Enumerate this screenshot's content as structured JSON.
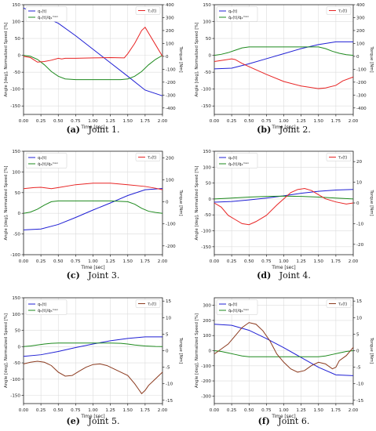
{
  "labels": {
    "xlabel": "Time [sec]",
    "ylabel_left": "Angle [deg], Normalized Speed [%]",
    "ylabel_right": "Torque [Nm]"
  },
  "colors": {
    "position": "#1f1fd4",
    "speed": "#1e8a1e",
    "torque_red": "#e82424",
    "torque_brown": "#8b3a1e"
  },
  "chart_data": [
    {
      "type": "line",
      "caption_tag": "(a)",
      "caption_text": "Joint 1.",
      "legend_left": [
        "q₁(t)",
        "q̇₁(t)/q̇₁ᵐᵃˣ"
      ],
      "legend_right": "τ₁(t)",
      "xlim": [
        0,
        2
      ],
      "xticks": [
        0,
        0.25,
        0.5,
        0.75,
        1.0,
        1.25,
        1.5,
        1.75,
        2.0
      ],
      "ylim_left": [
        -175,
        150
      ],
      "yticks_left": [
        -150,
        -100,
        -50,
        0,
        50,
        100,
        150
      ],
      "ylim_right": [
        -450,
        400
      ],
      "yticks_right": [
        -400,
        -300,
        -200,
        -100,
        0,
        100,
        200,
        300,
        400
      ],
      "torque_color": "#e82424",
      "position": [
        [
          0,
          140
        ],
        [
          0.25,
          118
        ],
        [
          0.5,
          95
        ],
        [
          0.75,
          58
        ],
        [
          1.0,
          18
        ],
        [
          1.25,
          -22
        ],
        [
          1.5,
          -62
        ],
        [
          1.75,
          -103
        ],
        [
          2.0,
          -120
        ]
      ],
      "speed": [
        [
          0,
          0
        ],
        [
          0.1,
          -3
        ],
        [
          0.2,
          -12
        ],
        [
          0.3,
          -28
        ],
        [
          0.4,
          -48
        ],
        [
          0.5,
          -62
        ],
        [
          0.6,
          -70
        ],
        [
          0.75,
          -72
        ],
        [
          1.0,
          -72
        ],
        [
          1.25,
          -72
        ],
        [
          1.4,
          -72
        ],
        [
          1.5,
          -70
        ],
        [
          1.6,
          -62
        ],
        [
          1.7,
          -48
        ],
        [
          1.8,
          -28
        ],
        [
          1.9,
          -12
        ],
        [
          2.0,
          0
        ]
      ],
      "torque": [
        [
          0,
          0
        ],
        [
          0.1,
          -10
        ],
        [
          0.2,
          -45
        ],
        [
          0.3,
          -40
        ],
        [
          0.4,
          -30
        ],
        [
          0.5,
          -15
        ],
        [
          0.55,
          -20
        ],
        [
          0.6,
          -15
        ],
        [
          0.75,
          -15
        ],
        [
          1.0,
          -12
        ],
        [
          1.25,
          -10
        ],
        [
          1.45,
          -12
        ],
        [
          1.5,
          20
        ],
        [
          1.6,
          100
        ],
        [
          1.7,
          200
        ],
        [
          1.75,
          225
        ],
        [
          1.8,
          180
        ],
        [
          1.9,
          90
        ],
        [
          2.0,
          0
        ]
      ]
    },
    {
      "type": "line",
      "caption_tag": "(b)",
      "caption_text": "Joint 2.",
      "legend_left": [
        "q₂(t)",
        "q̇₂(t)/q̇₂ᵐᵃˣ"
      ],
      "legend_right": "τ₂(t)",
      "xlim": [
        0,
        2
      ],
      "xticks": [
        0,
        0.25,
        0.5,
        0.75,
        1.0,
        1.25,
        1.5,
        1.75,
        2.0
      ],
      "ylim_left": [
        -175,
        150
      ],
      "yticks_left": [
        -150,
        -100,
        -50,
        0,
        50,
        100,
        150
      ],
      "ylim_right": [
        -450,
        400
      ],
      "yticks_right": [
        -400,
        -300,
        -200,
        -100,
        0,
        100,
        200,
        300,
        400
      ],
      "torque_color": "#e82424",
      "position": [
        [
          0,
          -40
        ],
        [
          0.25,
          -38
        ],
        [
          0.5,
          -25
        ],
        [
          0.75,
          -10
        ],
        [
          1.0,
          5
        ],
        [
          1.25,
          20
        ],
        [
          1.5,
          32
        ],
        [
          1.75,
          40
        ],
        [
          2.0,
          40
        ]
      ],
      "speed": [
        [
          0,
          0
        ],
        [
          0.1,
          3
        ],
        [
          0.2,
          8
        ],
        [
          0.3,
          15
        ],
        [
          0.4,
          22
        ],
        [
          0.5,
          25
        ],
        [
          0.75,
          25
        ],
        [
          1.0,
          25
        ],
        [
          1.25,
          25
        ],
        [
          1.5,
          25
        ],
        [
          1.6,
          20
        ],
        [
          1.7,
          12
        ],
        [
          1.8,
          6
        ],
        [
          1.9,
          2
        ],
        [
          2.0,
          0
        ]
      ],
      "torque": [
        [
          0,
          -40
        ],
        [
          0.15,
          -28
        ],
        [
          0.25,
          -20
        ],
        [
          0.3,
          -25
        ],
        [
          0.4,
          -55
        ],
        [
          0.5,
          -80
        ],
        [
          0.75,
          -140
        ],
        [
          1.0,
          -195
        ],
        [
          1.25,
          -230
        ],
        [
          1.5,
          -250
        ],
        [
          1.6,
          -245
        ],
        [
          1.75,
          -225
        ],
        [
          1.85,
          -190
        ],
        [
          2.0,
          -160
        ]
      ]
    },
    {
      "type": "line",
      "caption_tag": "(c)",
      "caption_text": "Joint 3.",
      "legend_left": [
        "q₃(t)",
        "q̇₃(t)/q̇₃ᵐᵃˣ"
      ],
      "legend_right": "τ₃(t)",
      "xlim": [
        0,
        2
      ],
      "xticks": [
        0,
        0.25,
        0.5,
        0.75,
        1.0,
        1.25,
        1.5,
        1.75,
        2.0
      ],
      "ylim_left": [
        -100,
        150
      ],
      "yticks_left": [
        -100,
        -50,
        0,
        50,
        100,
        150
      ],
      "ylim_right": [
        -240,
        230
      ],
      "yticks_right": [
        -200,
        -100,
        0,
        100,
        200
      ],
      "torque_color": "#e82424",
      "position": [
        [
          0,
          -40
        ],
        [
          0.25,
          -38
        ],
        [
          0.5,
          -27
        ],
        [
          0.75,
          -10
        ],
        [
          1.0,
          8
        ],
        [
          1.25,
          25
        ],
        [
          1.5,
          43
        ],
        [
          1.75,
          57
        ],
        [
          2.0,
          60
        ]
      ],
      "speed": [
        [
          0,
          0
        ],
        [
          0.1,
          3
        ],
        [
          0.2,
          10
        ],
        [
          0.3,
          20
        ],
        [
          0.4,
          28
        ],
        [
          0.5,
          30
        ],
        [
          0.75,
          30
        ],
        [
          1.0,
          30
        ],
        [
          1.25,
          30
        ],
        [
          1.5,
          28
        ],
        [
          1.6,
          22
        ],
        [
          1.7,
          12
        ],
        [
          1.8,
          5
        ],
        [
          1.9,
          2
        ],
        [
          2.0,
          0
        ]
      ],
      "torque": [
        [
          0,
          60
        ],
        [
          0.15,
          65
        ],
        [
          0.25,
          66
        ],
        [
          0.4,
          60
        ],
        [
          0.5,
          65
        ],
        [
          0.75,
          78
        ],
        [
          1.0,
          85
        ],
        [
          1.25,
          85
        ],
        [
          1.5,
          78
        ],
        [
          1.75,
          70
        ],
        [
          1.9,
          62
        ],
        [
          2.0,
          55
        ]
      ]
    },
    {
      "type": "line",
      "caption_tag": "(d)",
      "caption_text": "Joint 4.",
      "legend_left": [
        "q₄(t)",
        "q̇₄(t)/q̇₄ᵐᵃˣ"
      ],
      "legend_right": "τ₄(t)",
      "xlim": [
        0,
        2
      ],
      "xticks": [
        0,
        0.25,
        0.5,
        0.75,
        1.0,
        1.25,
        1.5,
        1.75,
        2.0
      ],
      "ylim_left": [
        -175,
        150
      ],
      "yticks_left": [
        -150,
        -100,
        -50,
        0,
        50,
        100,
        150
      ],
      "ylim_right": [
        -25,
        25
      ],
      "yticks_right": [
        -20,
        -10,
        0,
        10,
        20
      ],
      "torque_color": "#e82424",
      "position": [
        [
          0,
          -10
        ],
        [
          0.25,
          -8
        ],
        [
          0.5,
          -3
        ],
        [
          0.75,
          3
        ],
        [
          1.0,
          10
        ],
        [
          1.25,
          18
        ],
        [
          1.5,
          24
        ],
        [
          1.75,
          28
        ],
        [
          2.0,
          30
        ]
      ],
      "speed": [
        [
          0,
          0
        ],
        [
          0.25,
          3
        ],
        [
          0.5,
          6
        ],
        [
          0.75,
          8
        ],
        [
          1.0,
          9
        ],
        [
          1.25,
          8
        ],
        [
          1.5,
          6
        ],
        [
          1.75,
          3
        ],
        [
          2.0,
          0
        ]
      ],
      "torque": [
        [
          0,
          0
        ],
        [
          0.1,
          -2
        ],
        [
          0.2,
          -6
        ],
        [
          0.3,
          -8
        ],
        [
          0.4,
          -10
        ],
        [
          0.5,
          -10.5
        ],
        [
          0.6,
          -9
        ],
        [
          0.75,
          -6
        ],
        [
          0.9,
          -1
        ],
        [
          1.0,
          2
        ],
        [
          1.1,
          5
        ],
        [
          1.2,
          6.5
        ],
        [
          1.3,
          7
        ],
        [
          1.4,
          6
        ],
        [
          1.5,
          4
        ],
        [
          1.6,
          2
        ],
        [
          1.75,
          0.5
        ],
        [
          1.9,
          -0.5
        ],
        [
          2.0,
          0
        ]
      ]
    },
    {
      "type": "line",
      "caption_tag": "(e)",
      "caption_text": "Joint 5.",
      "legend_left": [
        "q₅(t)",
        "q̇₅(t)/q̇₅ᵐᵃˣ"
      ],
      "legend_right": "τ₅(t)",
      "xlim": [
        0,
        2
      ],
      "xticks": [
        0,
        0.25,
        0.5,
        0.75,
        1.0,
        1.25,
        1.5,
        1.75,
        2.0
      ],
      "ylim_left": [
        -175,
        150
      ],
      "yticks_left": [
        -150,
        -100,
        -50,
        0,
        50,
        100,
        150
      ],
      "ylim_right": [
        -16,
        16
      ],
      "yticks_right": [
        -15,
        -10,
        -5,
        0,
        5,
        10,
        15
      ],
      "torque_color": "#8b3a1e",
      "position": [
        [
          0,
          -30
        ],
        [
          0.25,
          -25
        ],
        [
          0.5,
          -15
        ],
        [
          0.75,
          -3
        ],
        [
          1.0,
          8
        ],
        [
          1.25,
          18
        ],
        [
          1.5,
          25
        ],
        [
          1.75,
          30
        ],
        [
          2.0,
          30
        ]
      ],
      "speed": [
        [
          0,
          0
        ],
        [
          0.1,
          2
        ],
        [
          0.2,
          5
        ],
        [
          0.3,
          8
        ],
        [
          0.4,
          10
        ],
        [
          0.5,
          11
        ],
        [
          0.75,
          11
        ],
        [
          1.0,
          11
        ],
        [
          1.25,
          11
        ],
        [
          1.4,
          10
        ],
        [
          1.5,
          8
        ],
        [
          1.6,
          5
        ],
        [
          1.75,
          2
        ],
        [
          1.9,
          0.5
        ],
        [
          2.0,
          0
        ]
      ],
      "torque": [
        [
          0,
          -4
        ],
        [
          0.1,
          -3.5
        ],
        [
          0.2,
          -3.2
        ],
        [
          0.3,
          -3.5
        ],
        [
          0.4,
          -4.5
        ],
        [
          0.5,
          -6.5
        ],
        [
          0.6,
          -7.7
        ],
        [
          0.7,
          -7.5
        ],
        [
          0.8,
          -6.2
        ],
        [
          0.9,
          -5
        ],
        [
          1.0,
          -4.2
        ],
        [
          1.1,
          -4
        ],
        [
          1.2,
          -4.5
        ],
        [
          1.3,
          -5.5
        ],
        [
          1.4,
          -6.5
        ],
        [
          1.5,
          -7.5
        ],
        [
          1.6,
          -10
        ],
        [
          1.65,
          -11.5
        ],
        [
          1.7,
          -13
        ],
        [
          1.75,
          -12
        ],
        [
          1.8,
          -10.5
        ],
        [
          1.9,
          -8.5
        ],
        [
          2.0,
          -6.5
        ]
      ]
    },
    {
      "type": "line",
      "caption_tag": "(f)",
      "caption_text": "Joint 6.",
      "legend_left": [
        "q₆(t)",
        "q̇₆(t)/q̇₆ᵐᵃˣ"
      ],
      "legend_right": "τ₆(t)",
      "xlim": [
        0,
        2
      ],
      "xticks": [
        0,
        0.25,
        0.5,
        0.75,
        1.0,
        1.25,
        1.5,
        1.75,
        2.0
      ],
      "ylim_left": [
        -350,
        350
      ],
      "yticks_left": [
        -300,
        -200,
        -100,
        0,
        100,
        200,
        300
      ],
      "ylim_right": [
        -16,
        16
      ],
      "yticks_right": [
        -15,
        -10,
        -5,
        0,
        5,
        10,
        15
      ],
      "torque_color": "#8b3a1e",
      "position": [
        [
          0,
          175
        ],
        [
          0.25,
          168
        ],
        [
          0.5,
          135
        ],
        [
          0.75,
          80
        ],
        [
          1.0,
          20
        ],
        [
          1.25,
          -45
        ],
        [
          1.5,
          -110
        ],
        [
          1.75,
          -160
        ],
        [
          2.0,
          -165
        ]
      ],
      "speed": [
        [
          0,
          0
        ],
        [
          0.1,
          -5
        ],
        [
          0.2,
          -15
        ],
        [
          0.3,
          -25
        ],
        [
          0.4,
          -35
        ],
        [
          0.5,
          -40
        ],
        [
          0.75,
          -40
        ],
        [
          1.0,
          -40
        ],
        [
          1.25,
          -40
        ],
        [
          1.5,
          -40
        ],
        [
          1.6,
          -35
        ],
        [
          1.7,
          -25
        ],
        [
          1.8,
          -15
        ],
        [
          1.9,
          -5
        ],
        [
          2.0,
          0
        ]
      ],
      "torque": [
        [
          0,
          -1
        ],
        [
          0.1,
          0.5
        ],
        [
          0.2,
          2
        ],
        [
          0.3,
          4.5
        ],
        [
          0.4,
          7
        ],
        [
          0.5,
          8.5
        ],
        [
          0.6,
          8
        ],
        [
          0.7,
          6
        ],
        [
          0.8,
          3
        ],
        [
          0.9,
          -1
        ],
        [
          1.0,
          -3.5
        ],
        [
          1.1,
          -5.5
        ],
        [
          1.2,
          -6.5
        ],
        [
          1.3,
          -6
        ],
        [
          1.4,
          -4.5
        ],
        [
          1.5,
          -3.5
        ],
        [
          1.6,
          -4
        ],
        [
          1.7,
          -5.5
        ],
        [
          1.75,
          -5
        ],
        [
          1.8,
          -3
        ],
        [
          1.9,
          -1.5
        ],
        [
          2.0,
          1
        ]
      ]
    }
  ]
}
